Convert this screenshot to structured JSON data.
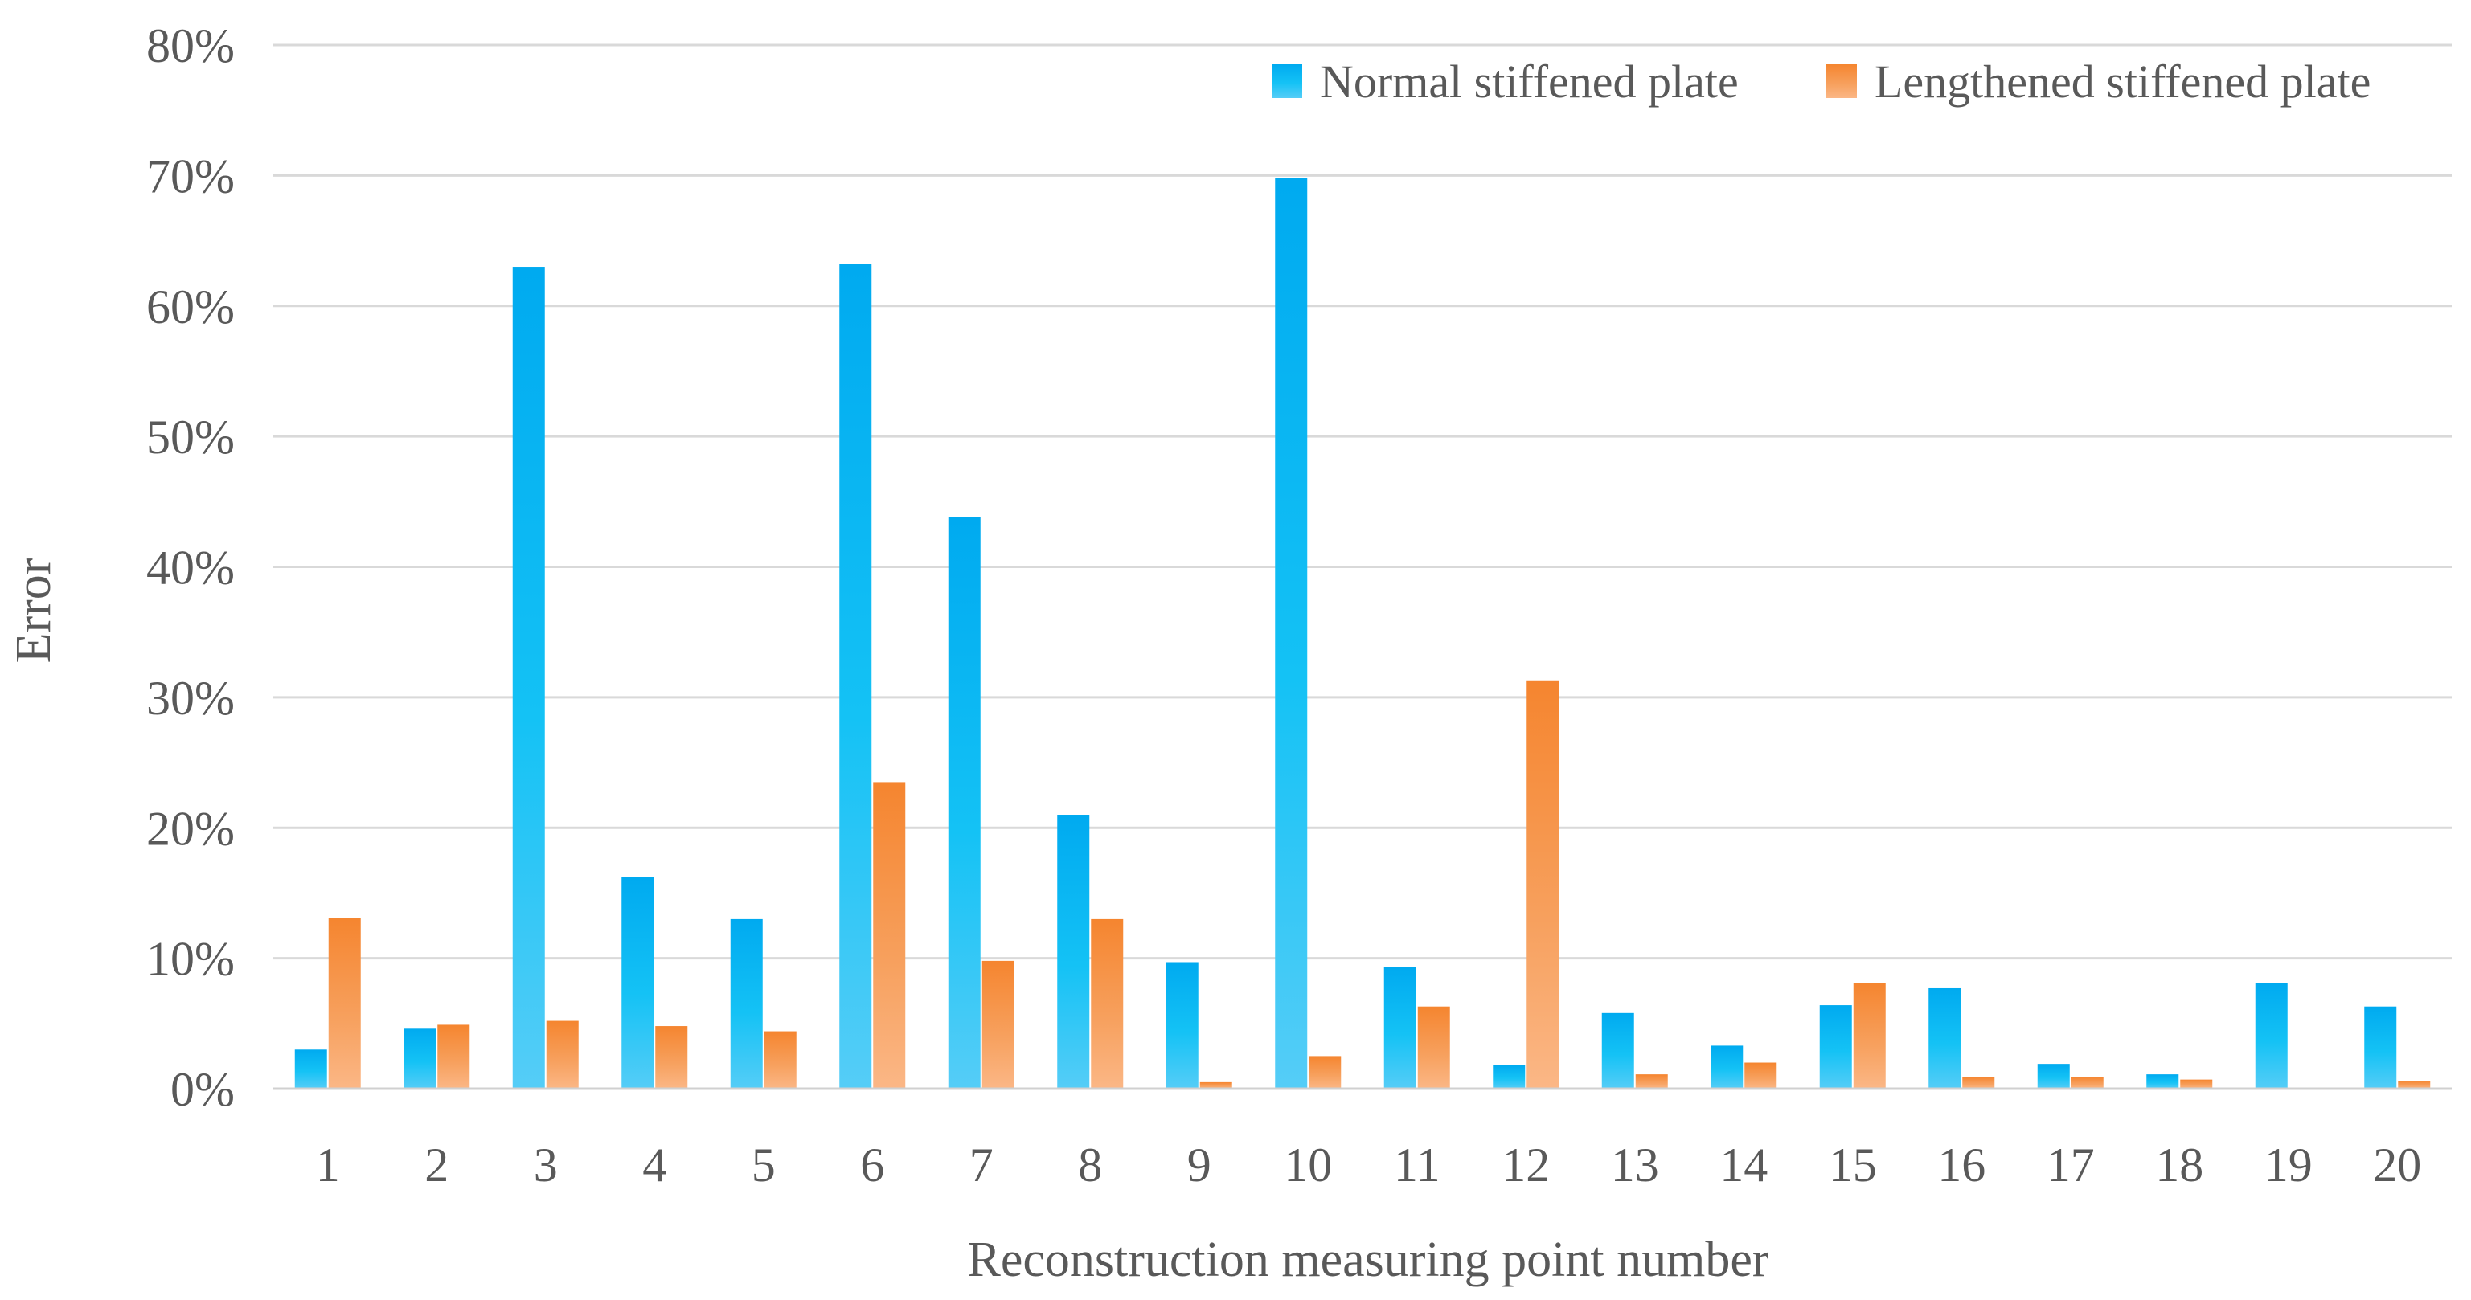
{
  "chart_data": {
    "type": "bar",
    "title": "",
    "xlabel": "Reconstruction measuring point number",
    "ylabel": "Error",
    "ylim": [
      0,
      80
    ],
    "yticks": [
      "0%",
      "10%",
      "20%",
      "30%",
      "40%",
      "50%",
      "60%",
      "70%",
      "80%"
    ],
    "grid": "horizontal",
    "legend_position": "top-right",
    "categories": [
      "1",
      "2",
      "3",
      "4",
      "5",
      "6",
      "7",
      "8",
      "9",
      "10",
      "11",
      "12",
      "13",
      "14",
      "15",
      "16",
      "17",
      "18",
      "19",
      "20"
    ],
    "series": [
      {
        "name": "Normal stiffened plate",
        "color": "#00b0f0",
        "values": [
          3.0,
          4.6,
          63.0,
          16.2,
          13.0,
          63.2,
          43.8,
          21.0,
          9.7,
          69.8,
          9.3,
          1.8,
          5.8,
          3.3,
          6.4,
          7.7,
          1.9,
          1.1,
          8.1,
          6.3
        ]
      },
      {
        "name": "Lengthened stiffened plate",
        "color": "#f58a3c",
        "values": [
          13.1,
          4.9,
          5.2,
          4.8,
          4.4,
          23.5,
          9.8,
          13.0,
          0.5,
          2.5,
          6.3,
          31.3,
          1.1,
          2.0,
          8.1,
          0.9,
          0.9,
          0.7,
          0,
          0.6
        ]
      }
    ]
  }
}
